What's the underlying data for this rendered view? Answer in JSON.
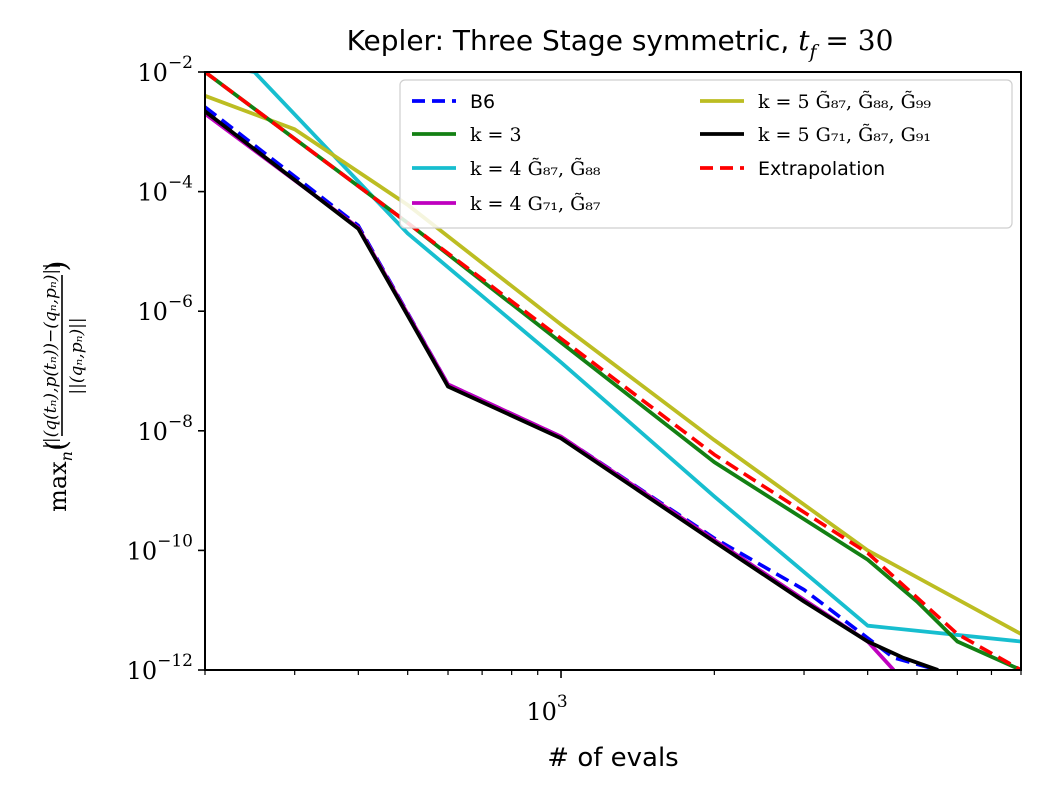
{
  "chart_data": {
    "type": "line",
    "title": "Kepler: Three Stage symmetric, t_f = 30",
    "title_prefix": "Kepler: Three Stage symmetric, ",
    "title_math": "t",
    "title_math_sub": "f",
    "title_math_rest": " = 30",
    "xlabel": "# of evals",
    "ylabel": "max_n( ||(q(t_n),p(t_n)) − (q_n,p_n)|| / ||(q_n,p_n)|| )",
    "ylabel_prefix": "max",
    "ylabel_prefix_sub": "n",
    "ylabel_numerator": "||(q(tₙ),p(tₙ))−(qₙ,pₙ)||",
    "ylabel_denominator": "||(qₙ,pₙ)||",
    "xscale": "log",
    "yscale": "log",
    "xlim": [
      200,
      8000
    ],
    "ylim": [
      1e-12,
      0.01
    ],
    "x_major_ticks": [
      {
        "value": 1000,
        "base": "10",
        "exp": "3"
      }
    ],
    "x_minor_ticks": [
      200,
      300,
      400,
      500,
      600,
      700,
      800,
      900,
      2000,
      3000,
      4000,
      5000,
      6000,
      7000,
      8000
    ],
    "y_ticks": [
      {
        "value": 0.01,
        "base": "10",
        "exp": "−2"
      },
      {
        "value": 0.0001,
        "base": "10",
        "exp": "−4"
      },
      {
        "value": 1e-06,
        "base": "10",
        "exp": "−6"
      },
      {
        "value": 1e-08,
        "base": "10",
        "exp": "−8"
      },
      {
        "value": 1e-10,
        "base": "10",
        "exp": "−10"
      },
      {
        "value": 1e-12,
        "base": "10",
        "exp": "−12"
      }
    ],
    "legend_position": "top-right",
    "series": [
      {
        "name": "k = 4 G̃87, G̃88",
        "legend_text": "k = 4 G̃₈₇, G̃₈₈",
        "color": "#17becf",
        "dash": "solid",
        "x": [
          200,
          250,
          500,
          1000,
          2000,
          4000,
          8000
        ],
        "y": [
          0.014,
          0.01,
          2e-05,
          1.4e-07,
          8e-10,
          5.5e-12,
          3e-12
        ]
      },
      {
        "name": "k = 5 G̃87, G̃88, G̃99",
        "legend_text": "k = 5 G̃₈₇, G̃₈₈, G̃₉₉",
        "color": "#bcbd22",
        "dash": "solid",
        "x": [
          200,
          300,
          500,
          1000,
          2000,
          4000,
          8000
        ],
        "y": [
          0.004,
          0.0011,
          6e-05,
          6e-07,
          7e-09,
          1e-10,
          4e-12
        ]
      },
      {
        "name": "k = 3",
        "legend_text": "k = 3",
        "color": "#138013",
        "dash": "solid",
        "x": [
          200,
          500,
          1000,
          2000,
          4000,
          5000,
          6000,
          8000
        ],
        "y": [
          0.01,
          3e-05,
          3e-07,
          3e-09,
          7e-11,
          1.4e-11,
          3e-12,
          1e-12
        ]
      },
      {
        "name": "Extrapolation",
        "legend_text": "Extrapolation",
        "color": "#ff0000",
        "dash": "dashed",
        "x": [
          200,
          500,
          1000,
          2000,
          4000,
          6000,
          8000
        ],
        "y": [
          0.01,
          3e-05,
          3.5e-07,
          4e-09,
          9e-11,
          4e-12,
          1e-12
        ]
      },
      {
        "name": "B6",
        "legend_text": "B6",
        "color": "#0000ff",
        "dash": "dashed",
        "x": [
          200,
          400,
          600,
          1000,
          2000,
          3000,
          4500,
          5500
        ],
        "y": [
          0.0026,
          2.7e-05,
          6e-08,
          8e-09,
          1.6e-10,
          2.2e-11,
          1.6e-12,
          1e-12
        ]
      },
      {
        "name": "k = 4 G71, G̃87",
        "legend_text": "k = 4 G₇₁, G̃₈₇",
        "color": "#bf00bf",
        "dash": "solid",
        "x": [
          200,
          400,
          600,
          1000,
          2000,
          3000,
          4000,
          4500
        ],
        "y": [
          0.002,
          2.5e-05,
          6e-08,
          8e-09,
          1.5e-10,
          1.5e-11,
          3e-12,
          1e-12
        ]
      },
      {
        "name": "k = 5 G71, G̃87, G91",
        "legend_text": "k = 5 G₇₁, G̃₈₇, G₉₁",
        "color": "#000000",
        "dash": "solid",
        "x": [
          200,
          400,
          600,
          1000,
          2000,
          3000,
          4000,
          4700,
          5500
        ],
        "y": [
          0.0022,
          2.4e-05,
          5.5e-08,
          7.5e-09,
          1.4e-10,
          1.4e-11,
          3e-12,
          1.6e-12,
          1e-12
        ]
      }
    ],
    "legend": [
      {
        "series_index": 4,
        "column": 0
      },
      {
        "series_index": 2,
        "column": 0
      },
      {
        "series_index": 0,
        "column": 0
      },
      {
        "series_index": 5,
        "column": 0
      },
      {
        "series_index": 1,
        "column": 1
      },
      {
        "series_index": 6,
        "column": 1
      },
      {
        "series_index": 3,
        "column": 1
      }
    ]
  }
}
